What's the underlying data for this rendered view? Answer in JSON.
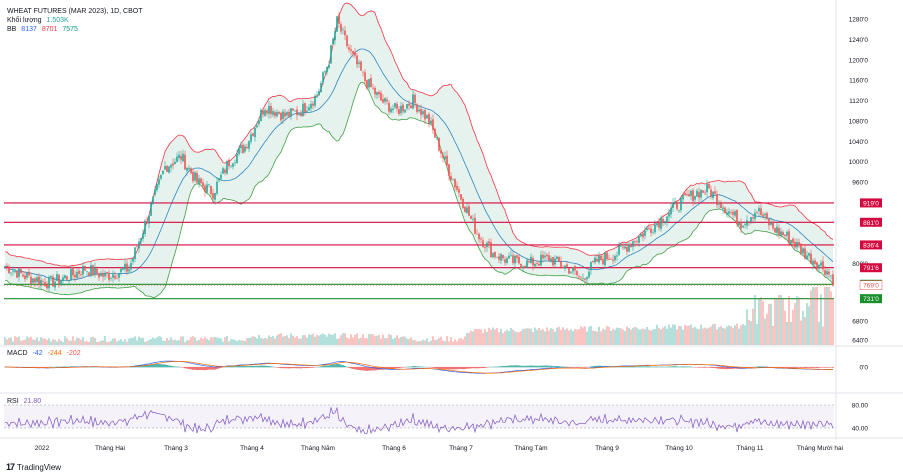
{
  "header": {
    "title": "WHEAT FUTURES (MAR 2023), 1D, CBOT",
    "volume_label": "Khối lượng",
    "volume_value": "1.503K",
    "bb_label": "BB",
    "bb_values": [
      "8137",
      "8701",
      "7575"
    ],
    "bb_colors": [
      "#2962ff",
      "#f23645",
      "#089981"
    ]
  },
  "macd": {
    "label": "MACD",
    "values": [
      "-42",
      "-244",
      "-202"
    ]
  },
  "rsi": {
    "label": "RSI",
    "value": "21.80"
  },
  "logo": "TradingView",
  "colors": {
    "up": "#26a69a",
    "down": "#ef5350",
    "bb_upper": "#f23645",
    "bb_lower": "#43a047",
    "bb_mid": "#2e86c1",
    "bb_fill": "#e6f2ee",
    "level_red": "#d5083f",
    "level_green": "#1b8e2c",
    "macd_line": "#2962ff",
    "signal_line": "#ff6d00",
    "rsi_line": "#7e57c2"
  },
  "chart_data": {
    "type": "candlestick",
    "title": "WHEAT FUTURES (MAR 2023), 1D, CBOT",
    "x_labels": [
      "2022",
      "Tháng Hai",
      "Tháng 3",
      "Tháng 4",
      "Tháng Năm",
      "Tháng 6",
      "Tháng 7",
      "Tháng Tám",
      "Tháng 9",
      "Tháng 10",
      "Tháng 11",
      "Tháng Mười hai"
    ],
    "y_ticks": [
      "1280'0",
      "1240'0",
      "1200'0",
      "1160'0",
      "1120'0",
      "1080'0",
      "1040'0",
      "1000'0",
      "960'0",
      "800'0",
      "680'0",
      "640'0"
    ],
    "ylim": [
      640,
      1290
    ],
    "price_levels": [
      {
        "label": "919'0",
        "value": 919,
        "color": "red"
      },
      {
        "label": "881'0",
        "value": 881,
        "color": "red"
      },
      {
        "label": "836'4",
        "value": 836.5,
        "color": "red"
      },
      {
        "label": "791'6",
        "value": 791.75,
        "color": "red"
      },
      {
        "label": "759'2",
        "value": 759.25,
        "color": "green"
      },
      {
        "label": "731'0",
        "value": 731,
        "color": "green"
      }
    ],
    "current_price_label": "769'0",
    "closes": [
      {
        "month": "2022",
        "close": 797
      },
      {
        "month": "Tháng Hai",
        "close": 780
      },
      {
        "month": "Tháng Hai",
        "close": 800
      },
      {
        "month": "Tháng 3",
        "close": 910
      },
      {
        "month": "Tháng 3",
        "close": 990
      },
      {
        "month": "Tháng 4",
        "close": 1040
      },
      {
        "month": "Tháng 4",
        "close": 1110
      },
      {
        "month": "Tháng Năm",
        "close": 1150
      },
      {
        "month": "Tháng Năm",
        "close": 1270
      },
      {
        "month": "Tháng 6",
        "close": 1180
      },
      {
        "month": "Tháng 6",
        "close": 1110
      },
      {
        "month": "Tháng 7",
        "close": 970
      },
      {
        "month": "Tháng 7",
        "close": 850
      },
      {
        "month": "Tháng Tám",
        "close": 800
      },
      {
        "month": "Tháng Tám",
        "close": 780
      },
      {
        "month": "Tháng 9",
        "close": 840
      },
      {
        "month": "Tháng 9",
        "close": 870
      },
      {
        "month": "Tháng 10",
        "close": 940
      },
      {
        "month": "Tháng 10",
        "close": 900
      },
      {
        "month": "Tháng 11",
        "close": 880
      },
      {
        "month": "Tháng 11",
        "close": 830
      },
      {
        "month": "Tháng Mười hai",
        "close": 769
      }
    ],
    "rsi_levels": [
      "80.00",
      "40.00"
    ],
    "macd_zero_label": "0'0",
    "volume_ticks": [
      "680'0"
    ]
  }
}
